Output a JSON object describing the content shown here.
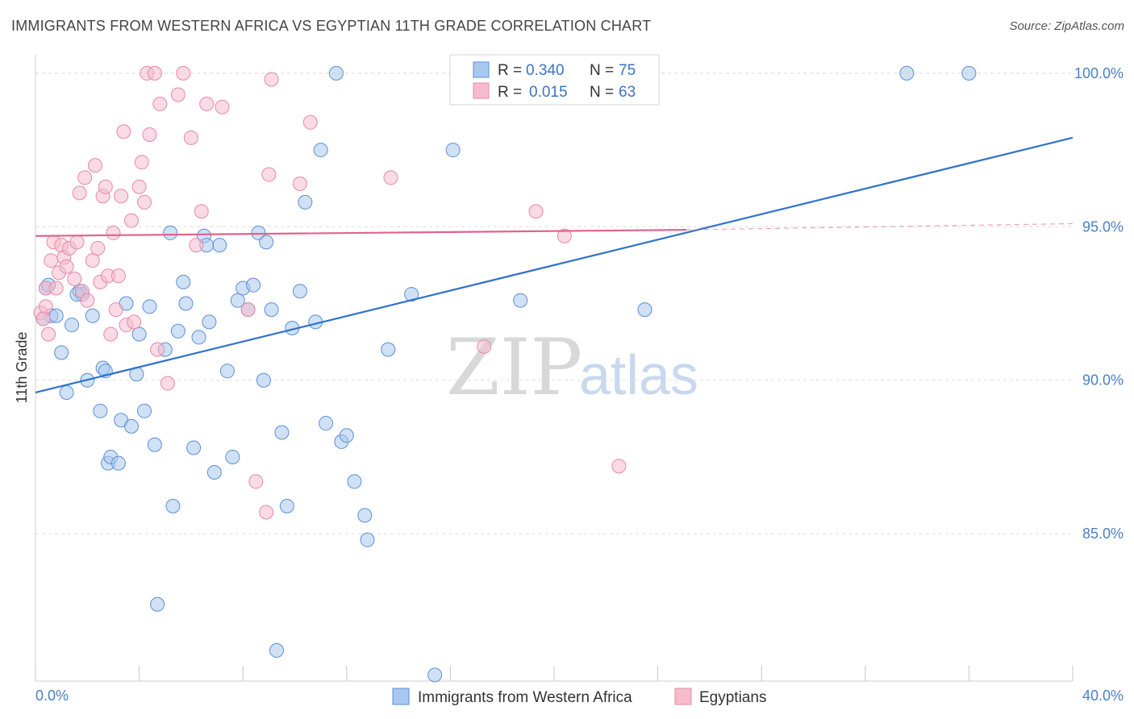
{
  "title": "IMMIGRANTS FROM WESTERN AFRICA VS EGYPTIAN 11TH GRADE CORRELATION CHART",
  "source": "Source: ZipAtlas.com",
  "watermark": {
    "zip": "ZIP",
    "atlas": "atlas"
  },
  "colors": {
    "blue_fill": "#a9c8ef",
    "blue_stroke": "#5b8fd6",
    "blue_line": "#2f72cc",
    "pink_fill": "#f6bccd",
    "pink_stroke": "#e58aa7",
    "pink_line": "#e0648e",
    "axis_text": "#4a7fc7",
    "grid": "#dddddd"
  },
  "legend_top": {
    "series": [
      {
        "r_label": "R =",
        "r_value": "0.340",
        "n_label": "N =",
        "n_value": "75"
      },
      {
        "r_label": "R =",
        "r_value": "0.015",
        "n_label": "N =",
        "n_value": "63"
      }
    ]
  },
  "legend_bottom": [
    "Immigrants from Western Africa",
    "Egyptians"
  ],
  "chart_data": {
    "type": "scatter",
    "title": "IMMIGRANTS FROM WESTERN AFRICA VS EGYPTIAN 11TH GRADE CORRELATION CHART",
    "xlabel": "",
    "ylabel": "11th Grade",
    "xlim": [
      0,
      40
    ],
    "ylim": [
      80.2,
      100.6
    ],
    "x_tick_labels": [
      "0.0%",
      "40.0%"
    ],
    "y_ticks": [
      85,
      90,
      95,
      100
    ],
    "y_tick_labels": [
      "85.0%",
      "90.0%",
      "95.0%",
      "100.0%"
    ],
    "grid": "horizontal dashed",
    "legend_placement": "top-center and bottom",
    "series": [
      {
        "name": "Immigrants from Western Africa",
        "trend": {
          "x": [
            0,
            40
          ],
          "y": [
            89.6,
            97.9
          ],
          "style": "solid"
        },
        "points": [
          [
            0.4,
            93.0
          ],
          [
            0.6,
            92.1
          ],
          [
            0.8,
            92.1
          ],
          [
            1.0,
            90.9
          ],
          [
            1.2,
            89.6
          ],
          [
            1.4,
            91.8
          ],
          [
            1.7,
            92.9
          ],
          [
            1.8,
            92.8
          ],
          [
            2.0,
            90.0
          ],
          [
            2.2,
            92.1
          ],
          [
            2.5,
            89.0
          ],
          [
            2.6,
            90.4
          ],
          [
            2.8,
            87.3
          ],
          [
            2.9,
            87.5
          ],
          [
            3.2,
            87.3
          ],
          [
            3.3,
            88.7
          ],
          [
            3.5,
            92.5
          ],
          [
            3.7,
            88.5
          ],
          [
            3.9,
            90.2
          ],
          [
            4.0,
            91.5
          ],
          [
            4.2,
            89.0
          ],
          [
            4.4,
            92.4
          ],
          [
            4.6,
            87.9
          ],
          [
            4.7,
            82.7
          ],
          [
            5.0,
            91.0
          ],
          [
            5.2,
            94.8
          ],
          [
            5.3,
            85.9
          ],
          [
            5.5,
            91.6
          ],
          [
            5.7,
            93.2
          ],
          [
            5.8,
            92.5
          ],
          [
            6.1,
            87.8
          ],
          [
            6.3,
            91.4
          ],
          [
            6.5,
            94.7
          ],
          [
            6.7,
            91.9
          ],
          [
            6.9,
            87.0
          ],
          [
            7.1,
            94.4
          ],
          [
            7.4,
            90.3
          ],
          [
            7.6,
            87.5
          ],
          [
            7.8,
            92.6
          ],
          [
            8.0,
            93.0
          ],
          [
            8.2,
            92.3
          ],
          [
            8.4,
            93.1
          ],
          [
            8.6,
            94.8
          ],
          [
            8.8,
            90.0
          ],
          [
            8.9,
            94.5
          ],
          [
            9.1,
            92.3
          ],
          [
            9.3,
            81.2
          ],
          [
            9.5,
            88.3
          ],
          [
            9.7,
            85.9
          ],
          [
            9.9,
            91.7
          ],
          [
            10.2,
            92.9
          ],
          [
            10.4,
            95.8
          ],
          [
            10.8,
            91.9
          ],
          [
            11.0,
            97.5
          ],
          [
            11.2,
            88.6
          ],
          [
            11.6,
            100.0
          ],
          [
            11.8,
            88.0
          ],
          [
            12.0,
            88.2
          ],
          [
            12.3,
            86.7
          ],
          [
            12.7,
            85.6
          ],
          [
            12.8,
            84.8
          ],
          [
            13.6,
            91.0
          ],
          [
            14.5,
            92.8
          ],
          [
            15.4,
            80.4
          ],
          [
            16.1,
            97.5
          ],
          [
            16.5,
            100.0
          ],
          [
            18.7,
            92.6
          ],
          [
            23.5,
            92.3
          ],
          [
            33.6,
            100.0
          ],
          [
            36.0,
            100.0
          ],
          [
            0.3,
            92.0
          ],
          [
            0.5,
            93.1
          ],
          [
            1.6,
            92.8
          ],
          [
            6.6,
            94.4
          ],
          [
            2.7,
            90.3
          ]
        ]
      },
      {
        "name": "Egyptians",
        "trend": {
          "x": [
            0,
            25.1
          ],
          "y": [
            94.7,
            94.9
          ],
          "style": "solid",
          "dashed_extension": {
            "x": [
              25.1,
              40
            ],
            "y": [
              94.9,
              95.1
            ]
          }
        },
        "points": [
          [
            0.2,
            92.2
          ],
          [
            0.3,
            92.0
          ],
          [
            0.4,
            93.0
          ],
          [
            0.5,
            91.5
          ],
          [
            0.6,
            93.9
          ],
          [
            0.7,
            94.5
          ],
          [
            0.8,
            93.0
          ],
          [
            0.9,
            93.5
          ],
          [
            1.0,
            94.4
          ],
          [
            1.1,
            94.0
          ],
          [
            1.2,
            93.7
          ],
          [
            1.3,
            94.3
          ],
          [
            1.5,
            93.3
          ],
          [
            1.6,
            94.5
          ],
          [
            1.7,
            96.1
          ],
          [
            1.8,
            92.9
          ],
          [
            1.9,
            96.6
          ],
          [
            2.0,
            92.6
          ],
          [
            2.2,
            93.9
          ],
          [
            2.3,
            97.0
          ],
          [
            2.4,
            94.3
          ],
          [
            2.5,
            93.2
          ],
          [
            2.6,
            96.0
          ],
          [
            2.7,
            96.3
          ],
          [
            2.8,
            93.4
          ],
          [
            2.9,
            91.5
          ],
          [
            3.0,
            94.8
          ],
          [
            3.1,
            92.3
          ],
          [
            3.2,
            93.4
          ],
          [
            3.3,
            96.0
          ],
          [
            3.4,
            98.1
          ],
          [
            3.5,
            91.8
          ],
          [
            3.7,
            95.2
          ],
          [
            3.8,
            91.9
          ],
          [
            4.0,
            96.3
          ],
          [
            4.1,
            97.1
          ],
          [
            4.2,
            95.8
          ],
          [
            4.3,
            100.0
          ],
          [
            4.4,
            98.0
          ],
          [
            4.6,
            100.0
          ],
          [
            4.7,
            91.0
          ],
          [
            4.8,
            99.0
          ],
          [
            5.1,
            89.9
          ],
          [
            5.5,
            99.3
          ],
          [
            5.7,
            100.0
          ],
          [
            6.0,
            97.9
          ],
          [
            6.2,
            94.4
          ],
          [
            6.4,
            95.5
          ],
          [
            6.6,
            99.0
          ],
          [
            7.2,
            98.9
          ],
          [
            8.2,
            92.3
          ],
          [
            8.5,
            86.7
          ],
          [
            8.9,
            85.7
          ],
          [
            9.0,
            96.7
          ],
          [
            9.1,
            99.8
          ],
          [
            10.2,
            96.4
          ],
          [
            10.6,
            98.4
          ],
          [
            13.7,
            96.6
          ],
          [
            17.3,
            91.1
          ],
          [
            19.3,
            95.5
          ],
          [
            20.4,
            94.7
          ],
          [
            22.5,
            87.2
          ],
          [
            0.4,
            92.4
          ]
        ]
      }
    ]
  }
}
